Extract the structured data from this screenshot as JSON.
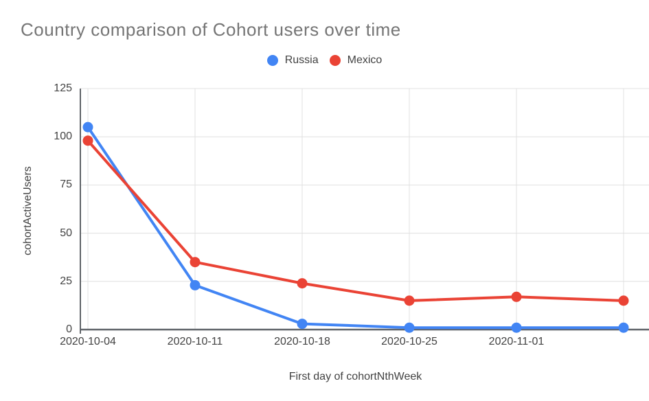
{
  "chart": {
    "title_color": "#757575",
    "text_color": "#424242",
    "gridline_color": "#e0e0e0",
    "axis_line_color": "#5f6368",
    "background": "#ffffff"
  },
  "chart_data": {
    "type": "line",
    "title": "Country comparison of Cohort users over time",
    "xlabel": "First day of cohortNthWeek",
    "ylabel": "cohortActiveUsers",
    "categories": [
      "2020-10-04",
      "2020-10-11",
      "2020-10-18",
      "2020-10-25",
      "2020-11-01",
      ""
    ],
    "y_ticks": [
      0,
      25,
      50,
      75,
      100,
      125
    ],
    "ylim": [
      0,
      125
    ],
    "grid": true,
    "legend_position": "top",
    "marker": "circle",
    "series": [
      {
        "name": "Russia",
        "color": "#4285F4",
        "values": [
          105,
          23,
          3,
          1,
          1,
          1
        ]
      },
      {
        "name": "Mexico",
        "color": "#EA4335",
        "values": [
          98,
          35,
          24,
          15,
          17,
          15
        ]
      }
    ]
  }
}
